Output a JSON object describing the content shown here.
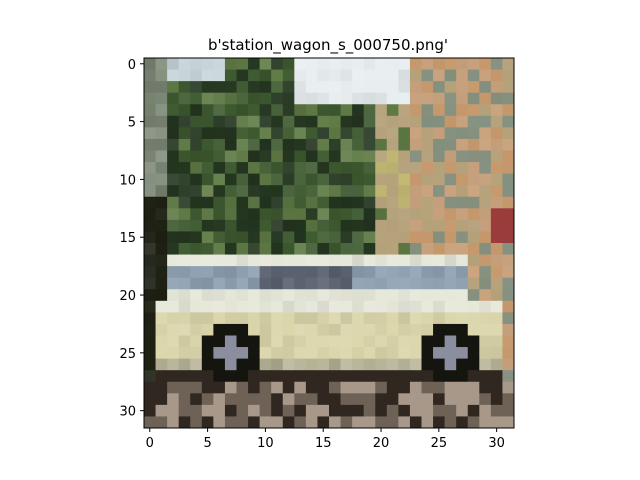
{
  "chart_data": {
    "type": "heatmap",
    "title": "b'station_wagon_s_000750.png'",
    "xlabel": "",
    "ylabel": "",
    "image_size": [
      32,
      32
    ],
    "xlim": [
      -0.5,
      31.5
    ],
    "ylim": [
      31.5,
      -0.5
    ],
    "x_ticks": [
      0,
      5,
      10,
      15,
      20,
      25,
      30
    ],
    "y_ticks": [
      0,
      5,
      10,
      15,
      20,
      25,
      30
    ],
    "x_tick_labels": [
      "0",
      "5",
      "10",
      "15",
      "20",
      "25",
      "30"
    ],
    "y_tick_labels": [
      "0",
      "5",
      "10",
      "15",
      "20",
      "25",
      "30"
    ],
    "grid": false,
    "legend": "none",
    "palette": {
      "sky": "#e8eef0",
      "sky_blue": "#c9d6dc",
      "tree_dark": "#243620",
      "tree": "#3e5a30",
      "tree_light": "#5f7a45",
      "gray_green": "#7e8a78",
      "trunk_dark": "#1e2114",
      "foliage_tan": "#b4a078",
      "foliage_peach": "#d2aa84",
      "foliage_yellow": "#c8be78",
      "foliage_orange": "#c89a6e",
      "foliage_red": "#9a3c3c",
      "car_white": "#e6e8da",
      "car_cream": "#dcd6ac",
      "car_shadow": "#b8b498",
      "window_blue": "#8ea0b2",
      "window_dark": "#5a6270",
      "tire": "#15150f",
      "hubcap": "#8a8e9e",
      "ground_dark": "#302820",
      "ground": "#6e6256",
      "ground_light": "#a8988a"
    }
  }
}
